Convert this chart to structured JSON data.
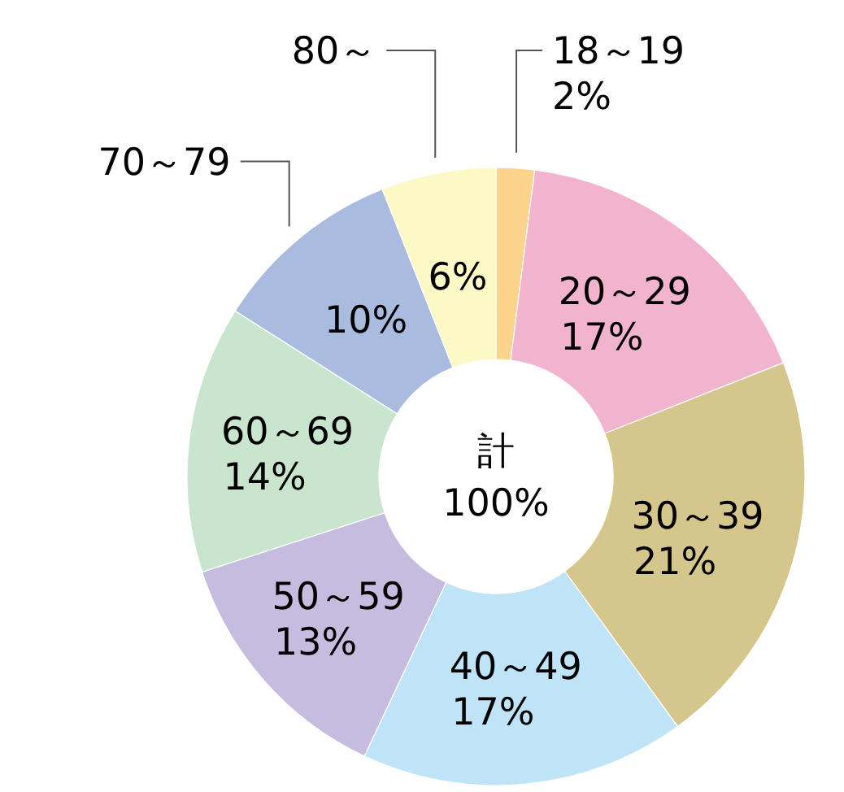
{
  "chart_data": {
    "type": "donut",
    "categories": [
      "18～19",
      "20～29",
      "30～39",
      "40～49",
      "50～59",
      "60～69",
      "70～79",
      "80～"
    ],
    "values": [
      2,
      17,
      21,
      17,
      13,
      14,
      10,
      6
    ],
    "colors": [
      "#fbd38a",
      "#f2b3cf",
      "#d5c68b",
      "#bfe3f7",
      "#c6bcdf",
      "#cae5cd",
      "#aabbe0",
      "#fdf9c6"
    ],
    "value_labels": [
      "2%",
      "17%",
      "21%",
      "17%",
      "13%",
      "14%",
      "10%",
      "6%"
    ],
    "annotations": [
      "計",
      "100%"
    ]
  }
}
